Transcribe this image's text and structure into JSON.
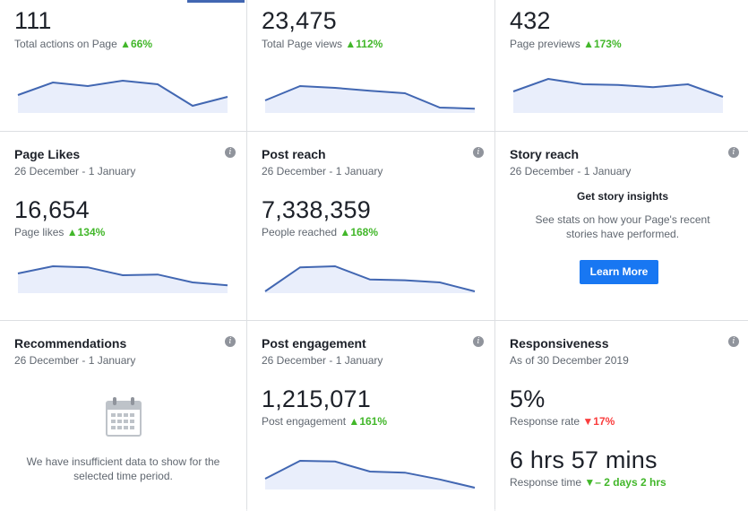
{
  "colors": {
    "accent": "#4267b2",
    "up": "#42b72a",
    "down": "#fa3e3e",
    "button": "#1877f2",
    "spark_fill": "#e9eefb"
  },
  "cards": {
    "actions": {
      "value": "111",
      "label": "Total actions on Page",
      "change": "66%",
      "trend": "up",
      "spark": [
        0.5,
        0.85,
        0.75,
        0.9,
        0.8,
        0.2,
        0.45
      ]
    },
    "views": {
      "value": "23,475",
      "label": "Total Page views",
      "change": "112%",
      "trend": "up",
      "spark": [
        0.35,
        0.75,
        0.7,
        0.62,
        0.55,
        0.15,
        0.12
      ]
    },
    "previews": {
      "value": "432",
      "label": "Page previews",
      "change": "173%",
      "trend": "up",
      "spark": [
        0.6,
        0.95,
        0.8,
        0.78,
        0.72,
        0.8,
        0.45
      ]
    },
    "likes": {
      "title": "Page Likes",
      "date": "26 December - 1 January",
      "value": "16,654",
      "label": "Page likes",
      "change": "134%",
      "trend": "up",
      "spark": [
        0.55,
        0.75,
        0.72,
        0.5,
        0.52,
        0.3,
        0.22
      ]
    },
    "reach": {
      "title": "Post reach",
      "date": "26 December - 1 January",
      "value": "7,338,359",
      "label": "People reached",
      "change": "168%",
      "trend": "up",
      "spark": [
        0.05,
        0.72,
        0.75,
        0.38,
        0.36,
        0.3,
        0.05
      ]
    },
    "story": {
      "title": "Story reach",
      "date": "26 December - 1 January",
      "heading": "Get story insights",
      "text1": "See stats on how your Page's recent",
      "text2": "stories have performed.",
      "button": "Learn More"
    },
    "recommendations": {
      "title": "Recommendations",
      "date": "26 December - 1 January",
      "text1": "We have insufficient data to show for the",
      "text2": "selected time period."
    },
    "engagement": {
      "title": "Post engagement",
      "date": "26 December - 1 January",
      "value": "1,215,071",
      "label": "Post engagement",
      "change": "161%",
      "trend": "up",
      "spark": [
        0.3,
        0.8,
        0.78,
        0.5,
        0.47,
        0.28,
        0.05
      ]
    },
    "responsiveness": {
      "title": "Responsiveness",
      "date": "As of 30 December 2019",
      "rate_value": "5%",
      "rate_label": "Response rate",
      "rate_change": "17%",
      "time_value": "6 hrs 57 mins",
      "time_label": "Response time",
      "time_change": "– 2 days 2 hrs"
    }
  }
}
